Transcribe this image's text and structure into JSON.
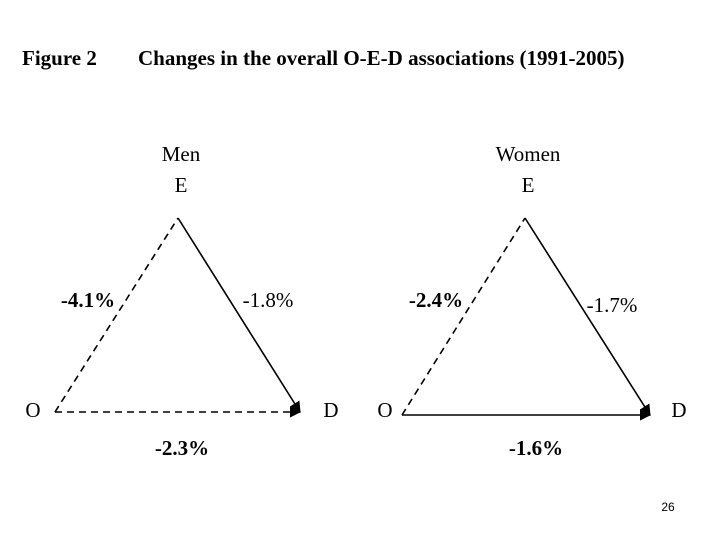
{
  "figure": {
    "label": "Figure 2",
    "title": "Changes in the overall O-E-D associations (1991-2005)"
  },
  "panels": [
    {
      "group": "Men",
      "nodes": {
        "E": "E",
        "O": "O",
        "D": "D"
      },
      "edges": {
        "OE": "-4.1%",
        "ED": "-1.8%",
        "OD": "-2.3%"
      }
    },
    {
      "group": "Women",
      "nodes": {
        "E": "E",
        "O": "O",
        "D": "D"
      },
      "edges": {
        "OE": "-2.4%",
        "ED": "-1.7%",
        "OD": "-1.6%"
      }
    }
  ],
  "page_number": "26"
}
